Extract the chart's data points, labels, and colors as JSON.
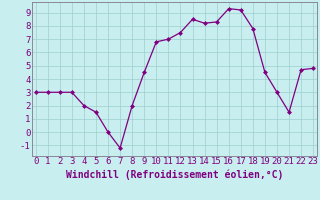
{
  "x": [
    0,
    1,
    2,
    3,
    4,
    5,
    6,
    7,
    8,
    9,
    10,
    11,
    12,
    13,
    14,
    15,
    16,
    17,
    18,
    19,
    20,
    21,
    22,
    23
  ],
  "y": [
    3.0,
    3.0,
    3.0,
    3.0,
    2.0,
    1.5,
    0.0,
    -1.2,
    2.0,
    4.5,
    6.8,
    7.0,
    7.5,
    8.5,
    8.2,
    8.3,
    9.3,
    9.2,
    7.8,
    4.5,
    3.0,
    1.5,
    4.7,
    4.8
  ],
  "xlabel": "Windchill (Refroidissement éolien,°C)",
  "ylim": [
    -1.8,
    9.8
  ],
  "xlim": [
    -0.3,
    23.3
  ],
  "yticks": [
    -1,
    0,
    1,
    2,
    3,
    4,
    5,
    6,
    7,
    8,
    9
  ],
  "xticks": [
    0,
    1,
    2,
    3,
    4,
    5,
    6,
    7,
    8,
    9,
    10,
    11,
    12,
    13,
    14,
    15,
    16,
    17,
    18,
    19,
    20,
    21,
    22,
    23
  ],
  "line_color": "#800080",
  "marker_color": "#800080",
  "bg_color": "#c8eef0",
  "grid_color": "#9dcfcc",
  "tick_label_color": "#800080",
  "xlabel_color": "#800080",
  "xlabel_fontsize": 7.0,
  "tick_fontsize": 6.5,
  "spine_color": "#888899"
}
